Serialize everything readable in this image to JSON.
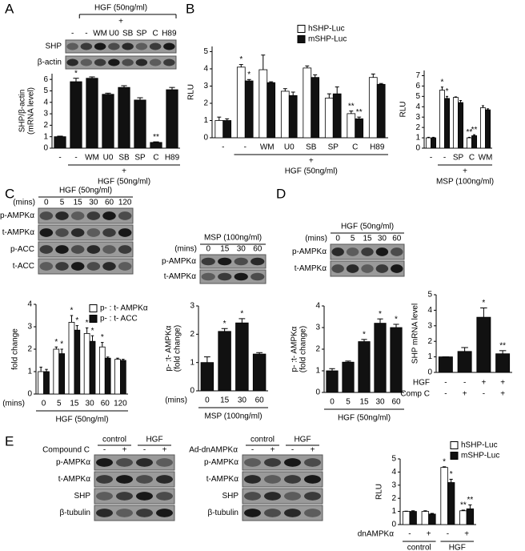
{
  "panels": [
    "A",
    "B",
    "C",
    "D",
    "E"
  ],
  "blots": [
    {
      "treatment": "HGF (50ng/ml)",
      "plus": "+",
      "lanes": [
        "-",
        "-",
        "WM",
        "U0",
        "SB",
        "SP",
        "C",
        "H89"
      ],
      "rows": [
        "SHP",
        "β-actin"
      ]
    },
    {
      "treatment": "HGF (50ng/ml)",
      "lane_unit": "(mins)",
      "lanes": [
        "0",
        "5",
        "15",
        "30",
        "60",
        "120"
      ],
      "rows": [
        "p-AMPKα",
        "t-AMPKα",
        "p-ACC",
        "t-ACC"
      ]
    },
    {
      "treatment": "MSP  (100ng/ml)",
      "lane_unit": "(mins)",
      "lanes": [
        "0",
        "15",
        "30",
        "60"
      ],
      "rows": [
        "p-AMPKα",
        "t-AMPKα"
      ]
    },
    {
      "treatment": "HGF (50ng/ml)",
      "lane_unit": "(mins)",
      "lanes": [
        "0",
        "5",
        "15",
        "30",
        "60"
      ],
      "rows": [
        "p-AMPKα",
        "t-AMPKα"
      ]
    },
    {
      "groups": [
        "control",
        "HGF"
      ],
      "treatment": "Compound C",
      "lanes": [
        "-",
        "+",
        "-",
        "+"
      ],
      "rows": [
        "p-AMPKα",
        "t-AMPKα",
        "SHP",
        "β-tubulin"
      ]
    },
    {
      "groups": [
        "control",
        "HGF"
      ],
      "treatment": "Ad-dnAMPKα",
      "lanes": [
        "-",
        "+",
        "-",
        "+"
      ],
      "rows": [
        "p-AMPKα",
        "t-AMPKα",
        "SHP",
        "β-tubulin"
      ]
    }
  ],
  "chart_data": [
    {
      "type": "bar",
      "ylabel": [
        "SHP/β-actin",
        "(mRNA level)"
      ],
      "categories": [
        "-",
        "-",
        "WM",
        "U0",
        "SB",
        "SP",
        "C",
        "H89"
      ],
      "series": [
        {
          "color": "#111111",
          "values": [
            1.0,
            5.8,
            6.1,
            4.7,
            5.3,
            4.2,
            0.5,
            5.1
          ],
          "errors": [
            0.05,
            0.3,
            0.12,
            0.1,
            0.15,
            0.2,
            0.05,
            0.2
          ],
          "annotations": [
            null,
            "*",
            null,
            null,
            null,
            null,
            "**",
            null
          ]
        }
      ],
      "ylim": [
        0,
        6.5
      ],
      "yticks": [
        0,
        1,
        2,
        3,
        4,
        5,
        6
      ],
      "treatment_marker": "+",
      "xlabel": "HGF (50ng/ml)"
    },
    {
      "type": "bar",
      "ylabel": [
        "RLU"
      ],
      "categories": [
        "-",
        "-",
        "WM",
        "U0",
        "SB",
        "SP",
        "C",
        "H89"
      ],
      "series": [
        {
          "name": "hSHP-Luc",
          "color": "#ffffff",
          "values": [
            1.0,
            4.1,
            3.95,
            2.7,
            4.05,
            2.3,
            1.4,
            3.5
          ],
          "errors": [
            0.2,
            0.15,
            0.85,
            0.15,
            0.12,
            0.25,
            0.15,
            0.2
          ],
          "annotations": [
            null,
            "*",
            null,
            null,
            null,
            null,
            "**",
            null
          ]
        },
        {
          "name": "mSHP-Luc",
          "color": "#111111",
          "values": [
            1.0,
            3.3,
            3.2,
            2.45,
            3.5,
            2.55,
            1.1,
            3.1
          ],
          "errors": [
            0.1,
            0.08,
            0.05,
            0.2,
            0.15,
            0.4,
            0.1,
            0.05
          ],
          "annotations": [
            null,
            "*",
            null,
            null,
            null,
            null,
            "**",
            null
          ]
        }
      ],
      "ylim": [
        0,
        5.3
      ],
      "yticks": [
        0,
        1,
        2,
        3,
        4,
        5
      ],
      "treatment_marker": "+",
      "xlabel": "HGF (50ng/ml)"
    },
    {
      "type": "bar",
      "ylabel": [
        "RLU"
      ],
      "categories": [
        "-",
        "-",
        "SP",
        "C",
        "WM"
      ],
      "series": [
        {
          "color": "#ffffff",
          "values": [
            1.0,
            5.6,
            4.9,
            1.0,
            3.9
          ],
          "errors": [
            0.05,
            0.3,
            0.05,
            0.05,
            0.2
          ],
          "annotations": [
            null,
            "*",
            null,
            "**",
            null
          ]
        },
        {
          "color": "#111111",
          "values": [
            1.0,
            4.8,
            4.4,
            1.2,
            3.7
          ],
          "errors": [
            0.05,
            0.2,
            0.2,
            0.1,
            0.1
          ],
          "annotations": [
            null,
            "*",
            null,
            "**",
            null
          ]
        }
      ],
      "ylim": [
        0,
        7.5
      ],
      "yticks": [
        0,
        1,
        2,
        3,
        4,
        5,
        6,
        7
      ],
      "treatment_marker": "+",
      "xlabel": "MSP (100ng/ml)"
    },
    {
      "type": "bar",
      "ylabel": [
        "fold change"
      ],
      "categories": [
        "0",
        "5",
        "15",
        "30",
        "60",
        "120"
      ],
      "x_unit": "(mins)",
      "series": [
        {
          "name": "p- : t- AMPKα",
          "color": "#ffffff",
          "values": [
            1.0,
            2.0,
            3.2,
            2.7,
            2.1,
            1.55
          ],
          "errors": [
            0.2,
            0.1,
            0.3,
            0.25,
            0.2,
            0.05
          ],
          "annotations": [
            null,
            "*",
            "*",
            "*",
            "*",
            null
          ]
        },
        {
          "name": "p- : t- ACC",
          "color": "#111111",
          "values": [
            1.0,
            1.8,
            2.85,
            2.35,
            1.6,
            1.5
          ],
          "errors": [
            0.1,
            0.2,
            0.2,
            0.25,
            0.05,
            0.05
          ],
          "annotations": [
            null,
            "*",
            "*",
            "*",
            null,
            null
          ]
        }
      ],
      "ylim": [
        0,
        4
      ],
      "yticks": [
        0,
        1,
        2,
        3,
        4
      ],
      "xlabel": "HGF (50ng/ml)"
    },
    {
      "type": "bar",
      "ylabel": [
        "p- :t- AMPKα",
        "(fold change)"
      ],
      "categories": [
        "0",
        "15",
        "30",
        "60"
      ],
      "x_unit": "(mins)",
      "series": [
        {
          "color": "#111111",
          "values": [
            1.0,
            2.1,
            2.4,
            1.3
          ],
          "errors": [
            0.2,
            0.1,
            0.15,
            0.05
          ],
          "annotations": [
            null,
            "*",
            "*",
            null
          ]
        }
      ],
      "ylim": [
        0,
        3
      ],
      "yticks": [
        0,
        1,
        2,
        3
      ],
      "xlabel": "MSP  (100ng/ml)"
    },
    {
      "type": "bar",
      "ylabel": [
        "p- :t- AMPKα",
        "(fold change)"
      ],
      "categories": [
        "0",
        "5",
        "15",
        "30",
        "60"
      ],
      "series": [
        {
          "color": "#111111",
          "values": [
            1.0,
            1.4,
            2.35,
            3.2,
            3.0
          ],
          "errors": [
            0.1,
            0.05,
            0.1,
            0.2,
            0.15
          ],
          "annotations": [
            null,
            null,
            "*",
            "*",
            "*"
          ]
        }
      ],
      "ylim": [
        0,
        4
      ],
      "yticks": [
        0,
        1,
        2,
        3,
        4
      ],
      "xlabel": "HGF (50ng/ml)"
    },
    {
      "type": "bar",
      "ylabel": [
        "SHP mRNA level"
      ],
      "series": [
        {
          "color": "#111111",
          "values": [
            1.0,
            1.35,
            3.55,
            1.2
          ],
          "errors": [
            0,
            0.25,
            0.6,
            0.2
          ],
          "annotations": [
            null,
            null,
            "*",
            "**"
          ]
        }
      ],
      "rows": [
        {
          "label": "HGF",
          "marks": [
            "-",
            "-",
            "+",
            "+"
          ]
        },
        {
          "label": "Comp C",
          "marks": [
            "-",
            "+",
            "-",
            "+"
          ]
        }
      ],
      "ylim": [
        0,
        5
      ],
      "yticks": [
        0,
        1,
        2,
        3,
        4,
        5
      ]
    },
    {
      "type": "bar",
      "ylabel": [
        "RLU"
      ],
      "categories": [
        "-",
        "+",
        "-",
        "+"
      ],
      "category_title": "dnAMPKα",
      "groups": [
        "control",
        "HGF"
      ],
      "series": [
        {
          "name": "hSHP-Luc",
          "color": "#ffffff",
          "values": [
            1.0,
            1.0,
            4.35,
            1.05
          ],
          "errors": [
            0.02,
            0.05,
            0.05,
            0.05
          ],
          "annotations": [
            null,
            null,
            "*",
            "**"
          ]
        },
        {
          "name": "mSHP-Luc",
          "color": "#111111",
          "values": [
            1.0,
            0.8,
            3.2,
            1.2
          ],
          "errors": [
            0.05,
            0.05,
            0.25,
            0.3
          ],
          "annotations": [
            null,
            null,
            "*",
            "**"
          ]
        }
      ],
      "ylim": [
        0,
        5
      ],
      "yticks": [
        0,
        1,
        2,
        3,
        4,
        5
      ]
    }
  ]
}
